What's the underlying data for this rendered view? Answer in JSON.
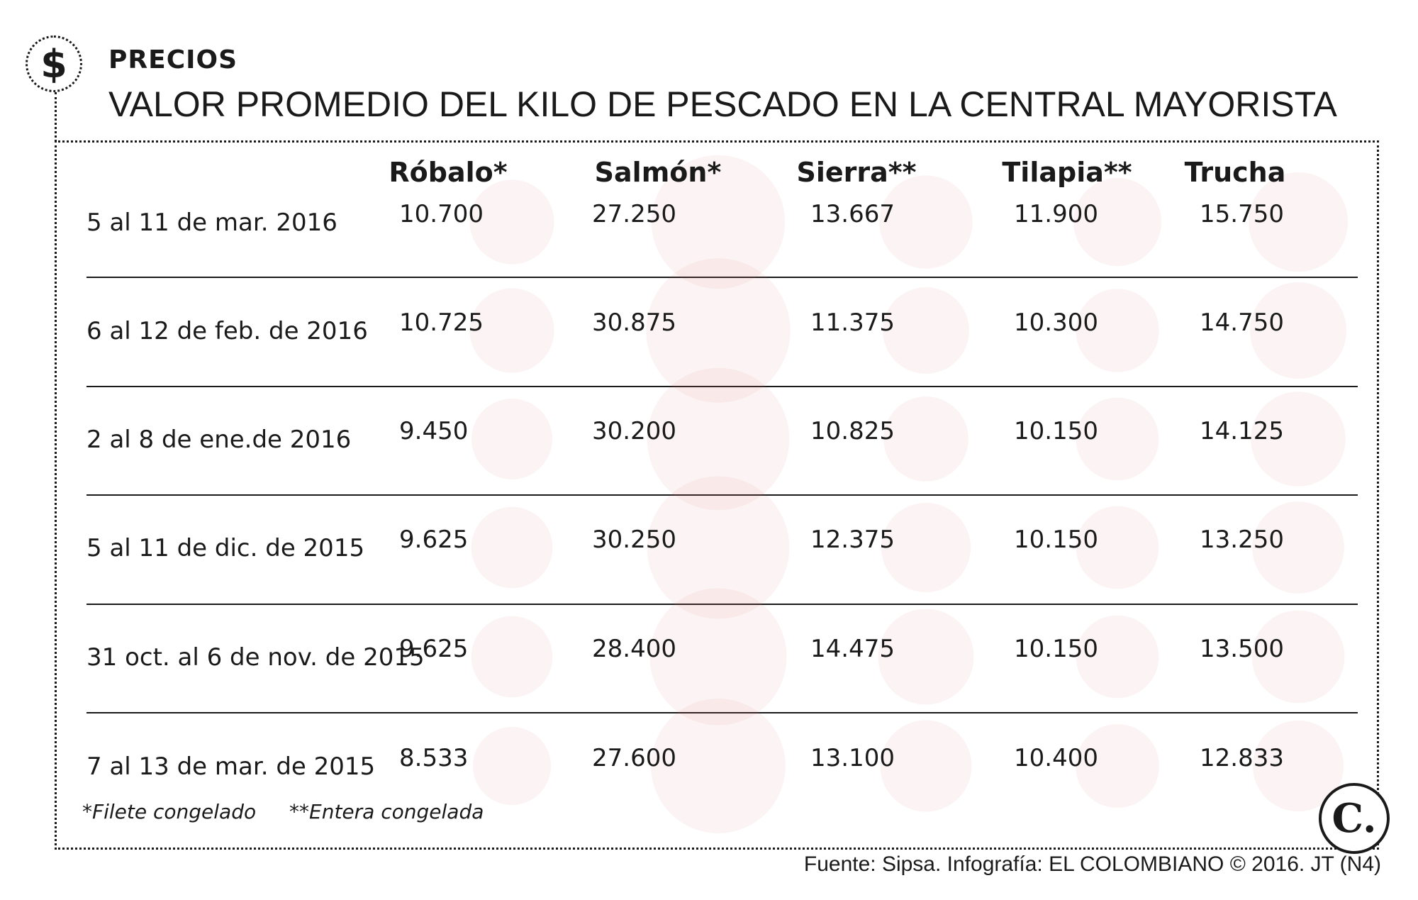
{
  "header": {
    "logo_symbol": "$",
    "kicker": "PRECIOS",
    "title": "VALOR PROMEDIO DEL KILO DE PESCADO EN LA CENTRAL MAYORISTA"
  },
  "chart_data": {
    "type": "table",
    "title": "VALOR PROMEDIO DEL KILO DE PESCADO EN LA CENTRAL MAYORISTA",
    "columns": [
      "Róbalo*",
      "Salmón*",
      "Sierra**",
      "Tilapia**",
      "Trucha"
    ],
    "rows": [
      {
        "label": "5 al 11 de mar. 2016",
        "values": [
          "10.700",
          "27.250",
          "13.667",
          "11.900",
          "15.750"
        ]
      },
      {
        "label": "6 al 12 de feb. de 2016",
        "values": [
          "10.725",
          "30.875",
          "11.375",
          "10.300",
          "14.750"
        ]
      },
      {
        "label": "2 al 8 de ene.de 2016",
        "values": [
          "9.450",
          "30.200",
          "10.825",
          "10.150",
          "14.125"
        ]
      },
      {
        "label": "5 al 11 de dic. de 2015",
        "values": [
          "9.625",
          "30.250",
          "12.375",
          "10.150",
          "13.250"
        ]
      },
      {
        "label": "31 oct. al 6 de nov. de 2015",
        "values": [
          "9.625",
          "28.400",
          "14.475",
          "10.150",
          "13.500"
        ]
      },
      {
        "label": "7 al 13 de mar. de 2015",
        "values": [
          "8.533",
          "27.600",
          "13.100",
          "10.400",
          "12.833"
        ]
      }
    ],
    "bubble_color": "#d66e76"
  },
  "footnotes": [
    "*Filete congelado",
    "**Entera congelada"
  ],
  "brand_logo": "C.",
  "source": "Fuente: Sipsa. Infografía: EL COLOMBIANO © 2016. JT (N4)"
}
